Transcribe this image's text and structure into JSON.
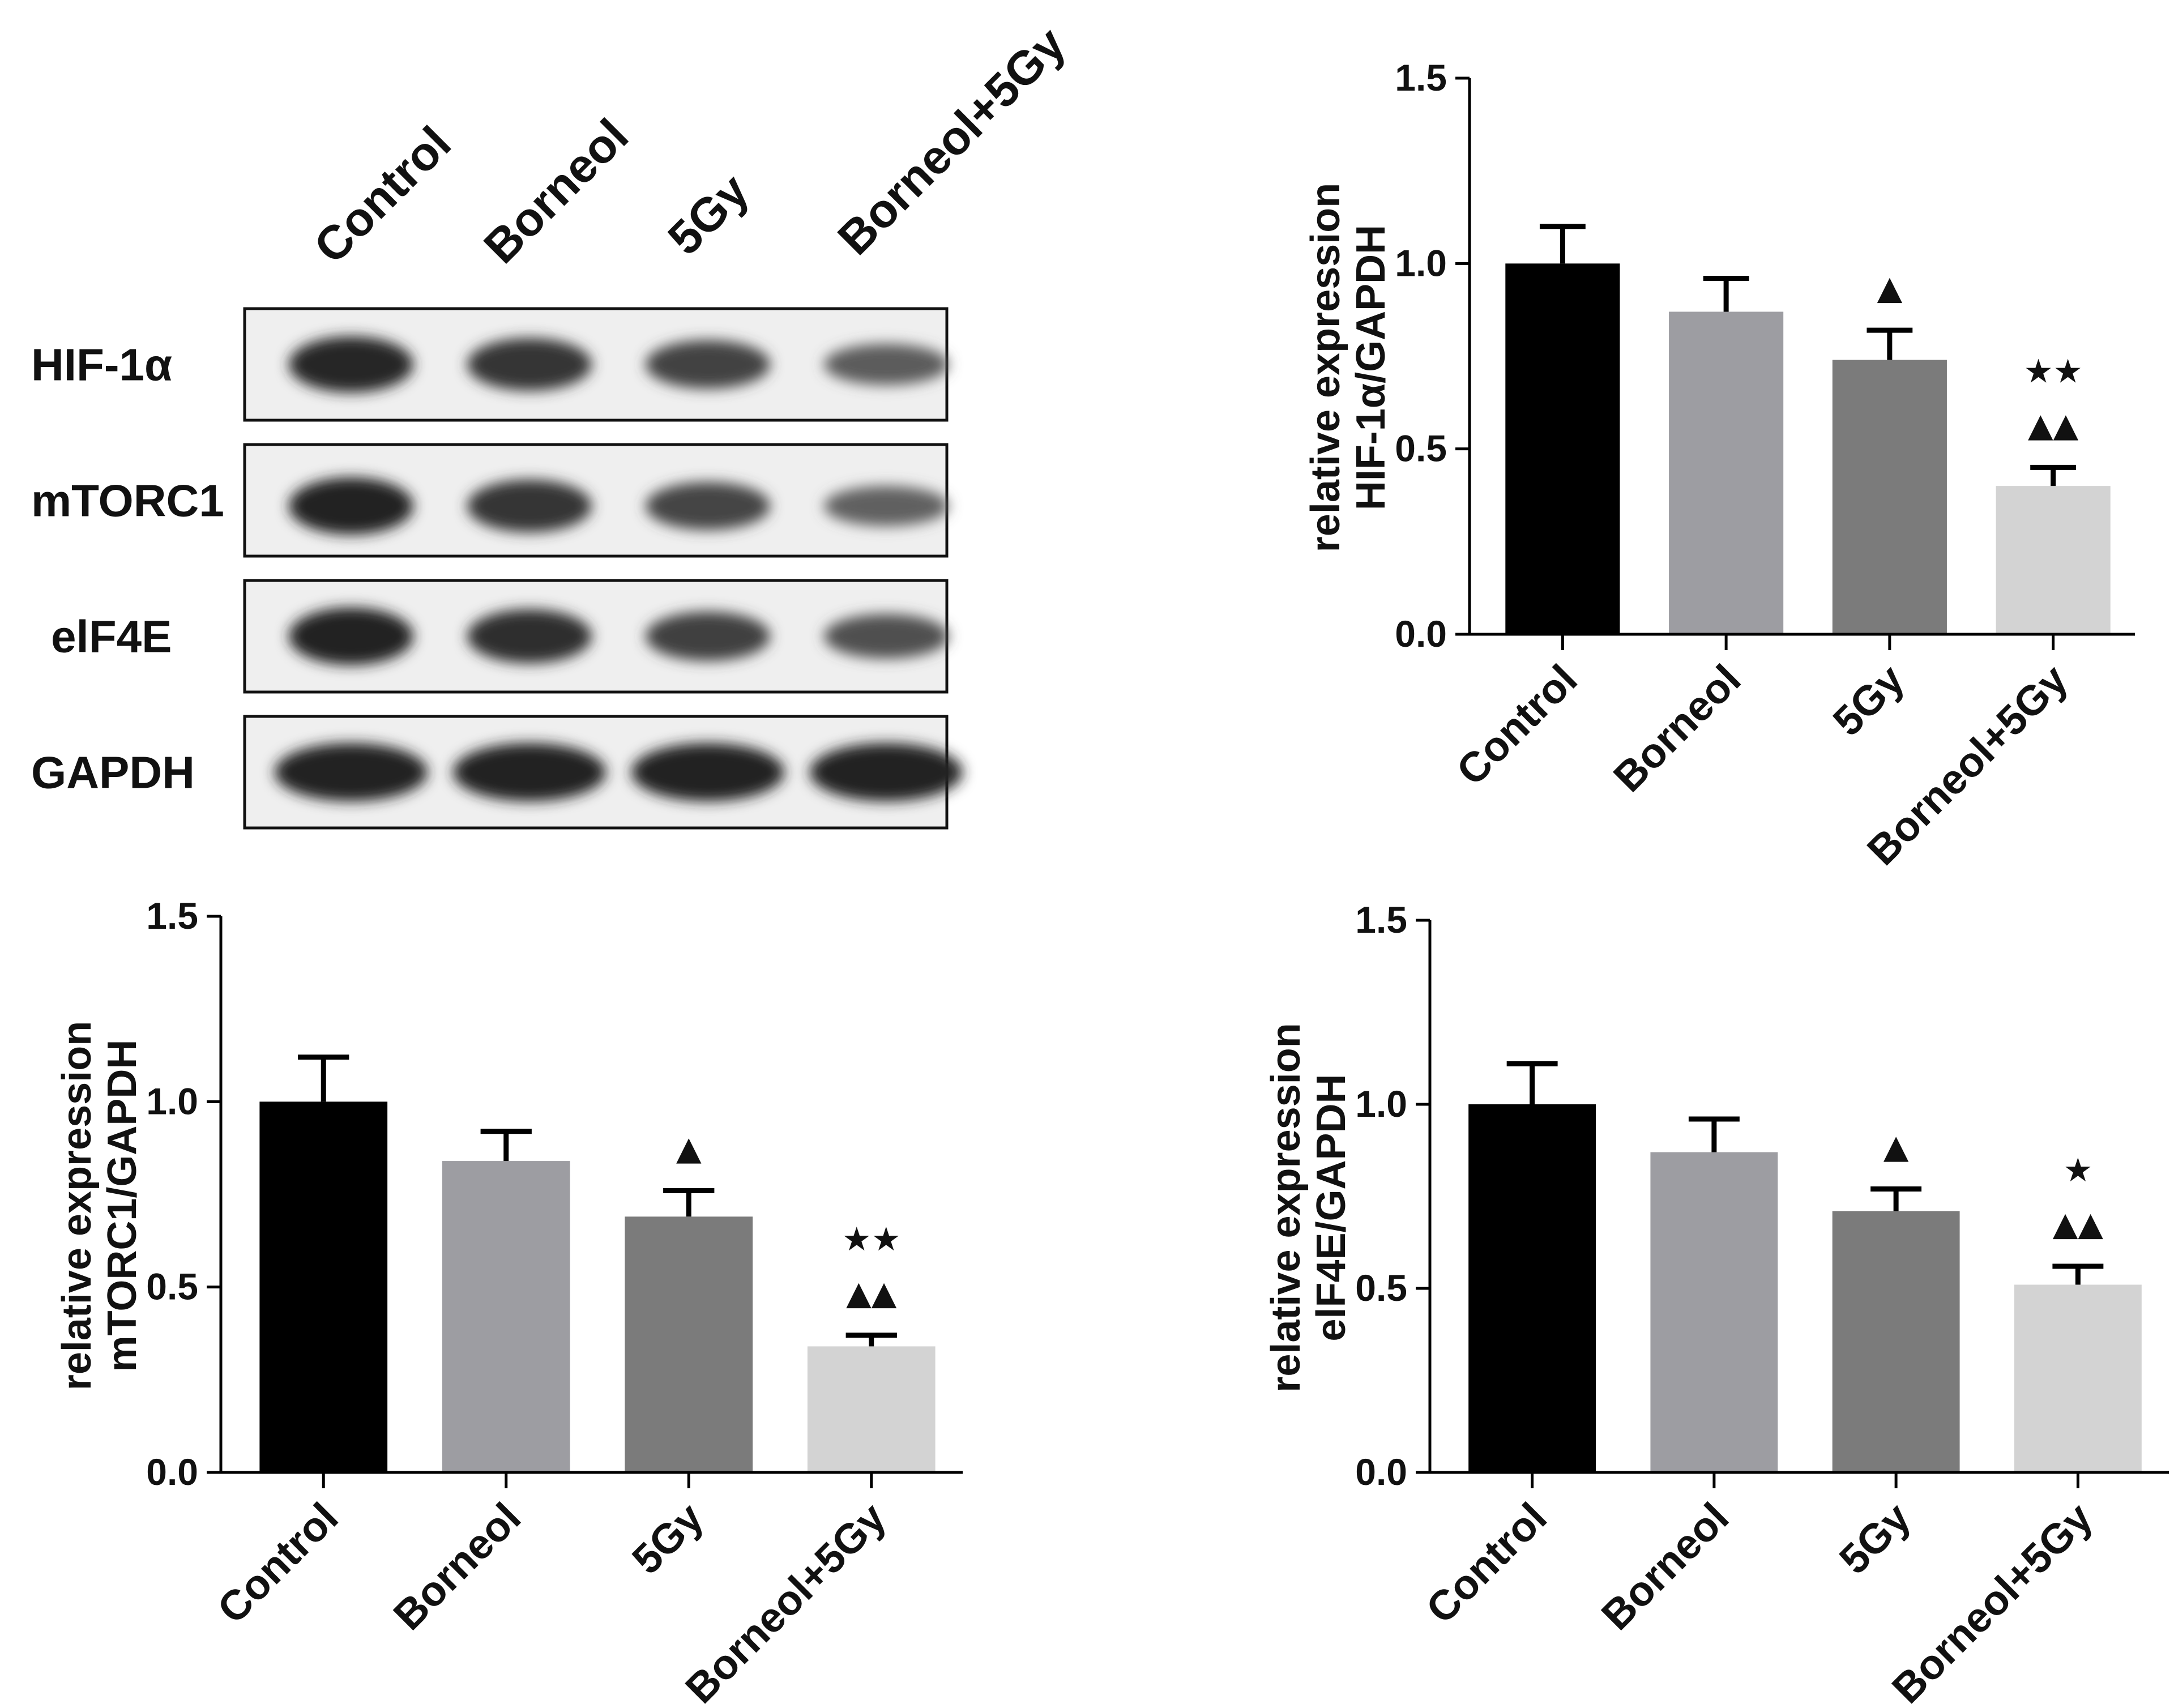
{
  "western_blot": {
    "lanes": [
      "Control",
      "Borneol",
      "5Gy",
      "Borneol+5Gy"
    ],
    "rows": [
      {
        "label": "HIF-1α",
        "intensity": [
          0.92,
          0.82,
          0.7,
          0.48
        ]
      },
      {
        "label": "mTORC1",
        "intensity": [
          0.95,
          0.82,
          0.68,
          0.45
        ]
      },
      {
        "label": "elF4E",
        "intensity": [
          0.96,
          0.86,
          0.72,
          0.58
        ]
      },
      {
        "label": "GAPDH",
        "intensity": [
          0.98,
          0.98,
          0.98,
          0.98
        ]
      }
    ]
  },
  "chart_data": [
    {
      "type": "bar",
      "ylabel_line1": "relative expression",
      "ylabel_line2": "HIF-1α/GAPDH",
      "ylim": [
        0,
        1.5
      ],
      "ticks": [
        "0.0",
        "0.5",
        "1.0",
        "1.5"
      ],
      "categories": [
        "Control",
        "Borneol",
        "5Gy",
        "Borneol+5Gy"
      ],
      "values": [
        1.0,
        0.87,
        0.74,
        0.4
      ],
      "errors": [
        0.1,
        0.09,
        0.08,
        0.05
      ],
      "colors": [
        "#000000",
        "#9d9da2",
        "#7b7b7b",
        "#d3d3d3"
      ],
      "significance": [
        [],
        [],
        [
          "▲"
        ],
        [
          "★★",
          "▲▲"
        ]
      ]
    },
    {
      "type": "bar",
      "ylabel_line1": "relative expression",
      "ylabel_line2": "mTORC1/GAPDH",
      "ylim": [
        0,
        1.5
      ],
      "ticks": [
        "0.0",
        "0.5",
        "1.0",
        "1.5"
      ],
      "categories": [
        "Control",
        "Borneol",
        "5Gy",
        "Borneol+5Gy"
      ],
      "values": [
        1.0,
        0.84,
        0.69,
        0.34
      ],
      "errors": [
        0.12,
        0.08,
        0.07,
        0.03
      ],
      "colors": [
        "#000000",
        "#9d9da2",
        "#7b7b7b",
        "#d3d3d3"
      ],
      "significance": [
        [],
        [],
        [
          "▲"
        ],
        [
          "★★",
          "▲▲"
        ]
      ]
    },
    {
      "type": "bar",
      "ylabel_line1": "relative expression",
      "ylabel_line2": "elF4E/GAPDH",
      "ylim": [
        0,
        1.5
      ],
      "ticks": [
        "0.0",
        "0.5",
        "1.0",
        "1.5"
      ],
      "categories": [
        "Control",
        "Borneol",
        "5Gy",
        "Borneol+5Gy"
      ],
      "values": [
        1.0,
        0.87,
        0.71,
        0.51
      ],
      "errors": [
        0.11,
        0.09,
        0.06,
        0.05
      ],
      "colors": [
        "#000000",
        "#9d9da2",
        "#7b7b7b",
        "#d3d3d3"
      ],
      "significance": [
        [],
        [],
        [
          "▲"
        ],
        [
          "★",
          "▲▲"
        ]
      ]
    }
  ]
}
